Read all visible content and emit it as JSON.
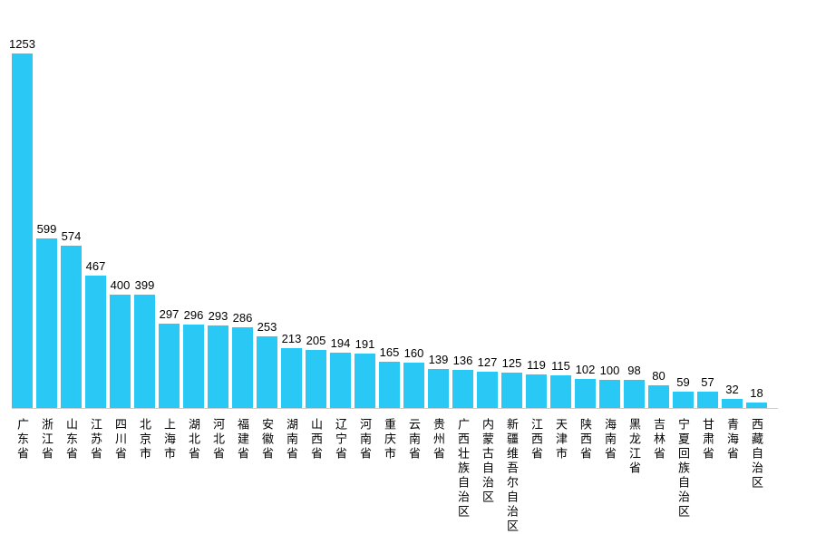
{
  "chart_data": {
    "type": "bar",
    "title": "",
    "xlabel": "",
    "ylabel": "",
    "ylim": [
      0,
      1253
    ],
    "grid": false,
    "legend": "none",
    "bar_color": "#29C8F5",
    "axis_line_color": "#cccccc",
    "value_labels_shown": true,
    "categories": [
      "广东省",
      "浙江省",
      "山东省",
      "江苏省",
      "四川省",
      "北京市",
      "上海市",
      "湖北省",
      "河北省",
      "福建省",
      "安徽省",
      "湖南省",
      "山西省",
      "辽宁省",
      "河南省",
      "重庆市",
      "云南省",
      "贵州省",
      "广西壮族自治区",
      "内蒙古自治区",
      "新疆维吾尔自治区",
      "江西省",
      "天津市",
      "陕西省",
      "海南省",
      "黑龙江省",
      "吉林省",
      "宁夏回族自治区",
      "甘肃省",
      "青海省",
      "西藏自治区"
    ],
    "values": [
      1253,
      599,
      574,
      467,
      400,
      399,
      297,
      296,
      293,
      286,
      253,
      213,
      205,
      194,
      191,
      165,
      160,
      139,
      136,
      127,
      125,
      119,
      115,
      102,
      100,
      98,
      80,
      59,
      57,
      32,
      18
    ]
  }
}
